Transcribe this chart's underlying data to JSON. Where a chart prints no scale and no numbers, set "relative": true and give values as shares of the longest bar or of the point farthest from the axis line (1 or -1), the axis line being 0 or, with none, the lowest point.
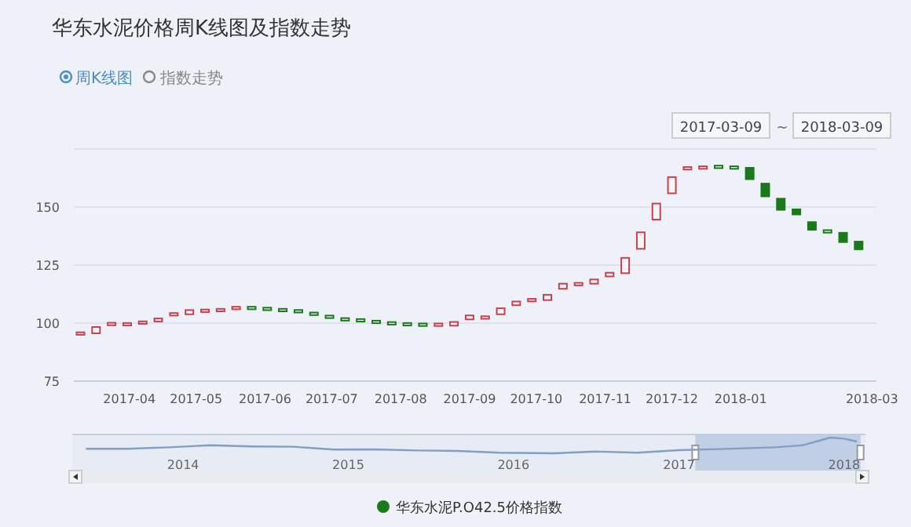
{
  "chart_data": [
    {
      "type": "candlestick",
      "title": "华东水泥价格周K线图及指数走势",
      "annotations": [
        "周K线图",
        "指数走势",
        "2017-03-09",
        "~",
        "2018-03-09"
      ],
      "x": [
        "2017-03-10",
        "2017-03-17",
        "2017-03-24",
        "2017-03-31",
        "2017-04-07",
        "2017-04-14",
        "2017-04-21",
        "2017-04-28",
        "2017-05-05",
        "2017-05-12",
        "2017-05-19",
        "2017-05-26",
        "2017-06-02",
        "2017-06-09",
        "2017-06-16",
        "2017-06-23",
        "2017-06-30",
        "2017-07-07",
        "2017-07-14",
        "2017-07-21",
        "2017-07-28",
        "2017-08-04",
        "2017-08-11",
        "2017-08-18",
        "2017-08-25",
        "2017-09-01",
        "2017-09-08",
        "2017-09-15",
        "2017-09-22",
        "2017-09-29",
        "2017-10-06",
        "2017-10-13",
        "2017-10-20",
        "2017-10-27",
        "2017-11-03",
        "2017-11-10",
        "2017-11-17",
        "2017-11-24",
        "2017-12-01",
        "2017-12-08",
        "2017-12-15",
        "2017-12-22",
        "2017-12-29",
        "2018-01-05",
        "2018-01-12",
        "2018-01-19",
        "2018-01-26",
        "2018-02-02",
        "2018-02-09",
        "2018-02-16",
        "2018-02-23"
      ],
      "series": [
        {
          "name": "华东水泥P.O42.5价格指数",
          "color": "#1a7a1a",
          "ohlc": [
            [
              95.5,
              95.5,
              95.5,
              95.5
            ],
            [
              95.6,
              98.3,
              95.6,
              98.3
            ],
            [
              99.0,
              99.6,
              99.0,
              99.6
            ],
            [
              99.5,
              99.5,
              99.5,
              99.5
            ],
            [
              100.2,
              100.2,
              100.2,
              100.2
            ],
            [
              100.7,
              102,
              100.7,
              102
            ],
            [
              103.8,
              103.8,
              103.8,
              103.8
            ],
            [
              103.8,
              105.6,
              103.8,
              105.6
            ],
            [
              105.3,
              105.3,
              105.3,
              105.3
            ],
            [
              105.6,
              105.6,
              105.6,
              105.6
            ],
            [
              105.6,
              106.5,
              105.6,
              106.5
            ],
            [
              106.5,
              106.5,
              106.5,
              106.5
            ],
            [
              106.1,
              106.1,
              106.1,
              106.1
            ],
            [
              105.6,
              105.6,
              105.6,
              105.6
            ],
            [
              105.1,
              105.1,
              105.1,
              105.1
            ],
            [
              104,
              104,
              104,
              104
            ],
            [
              102.7,
              102.7,
              102.7,
              102.7
            ],
            [
              101.6,
              101.6,
              101.6,
              101.6
            ],
            [
              101.2,
              101.2,
              101.2,
              101.2
            ],
            [
              100.5,
              100.5,
              100.5,
              100.5
            ],
            [
              99.9,
              99.9,
              99.9,
              99.9
            ],
            [
              99.5,
              99.5,
              99.5,
              99.5
            ],
            [
              99.3,
              99.3,
              99.3,
              99.3
            ],
            [
              99.3,
              99.3,
              99.3,
              99.3
            ],
            [
              98.9,
              100.5,
              98.9,
              100.5
            ],
            [
              101.6,
              103.3,
              101.6,
              103.3
            ],
            [
              102.4,
              102.4,
              102.4,
              102.4
            ],
            [
              103.8,
              106.4,
              103.8,
              106.4
            ],
            [
              107.7,
              109.3,
              107.7,
              109.3
            ],
            [
              109.9,
              109.9,
              109.9,
              109.9
            ],
            [
              109.9,
              112.2,
              109.9,
              112.2
            ],
            [
              114.8,
              117,
              114.8,
              117
            ],
            [
              116.8,
              116.8,
              116.8,
              116.8
            ],
            [
              117,
              118.8,
              117,
              118.8
            ],
            [
              120.1,
              121.7,
              120.1,
              121.7
            ],
            [
              121.5,
              128.1,
              121.5,
              128.1
            ],
            [
              132,
              139.1,
              132,
              139.1
            ],
            [
              144.6,
              151.5,
              144.6,
              151.5
            ],
            [
              155.9,
              162.9,
              155.9,
              162.9
            ],
            [
              166.7,
              166.7,
              166.7,
              166.7
            ],
            [
              167,
              167,
              167,
              167
            ],
            [
              167.3,
              167.3,
              167.3,
              167.3
            ],
            [
              167,
              167,
              167,
              167
            ],
            [
              166.9,
              166.9,
              162,
              162
            ],
            [
              160.1,
              160.1,
              154.6,
              154.6
            ],
            [
              153.6,
              153.6,
              148.8,
              148.8
            ],
            [
              149,
              149,
              146.8,
              146.8
            ],
            [
              143.5,
              143.5,
              140.2,
              140.2
            ],
            [
              139.5,
              139.5,
              139.5,
              139.5
            ],
            [
              138.9,
              138.9,
              134.9,
              134.9
            ],
            [
              135.1,
              135.1,
              131.8,
              131.8
            ]
          ],
          "colors": [
            "#c9414b",
            "#c9414b",
            "#c9414b",
            "#c9414b",
            "#c9414b",
            "#c9414b",
            "#c9414b",
            "#c9414b",
            "#c9414b",
            "#c9414b",
            "#c9414b",
            "#1a7a1a",
            "#1a7a1a",
            "#1a7a1a",
            "#1a7a1a",
            "#1a7a1a",
            "#1a7a1a",
            "#1a7a1a",
            "#1a7a1a",
            "#1a7a1a",
            "#1a7a1a",
            "#1a7a1a",
            "#1a7a1a",
            "#c9414b",
            "#c9414b",
            "#c9414b",
            "#c9414b",
            "#c9414b",
            "#c9414b",
            "#c9414b",
            "#c9414b",
            "#c9414b",
            "#c9414b",
            "#c9414b",
            "#c9414b",
            "#c9414b",
            "#c9414b",
            "#c9414b",
            "#c9414b",
            "#c9414b",
            "#c9414b",
            "#1a7a1a",
            "#1a7a1a",
            "#1a7a1a",
            "#1a7a1a",
            "#1a7a1a",
            "#1a7a1a",
            "#1a7a1a",
            "#1a7a1a",
            "#1a7a1a",
            "#1a7a1a"
          ]
        }
      ],
      "xlim": [
        "2017-03-07",
        "2018-03-03"
      ],
      "xticks": [
        "2017-04",
        "2017-05",
        "2017-06",
        "2017-07",
        "2017-08",
        "2017-09",
        "2017-10",
        "2017-11",
        "2017-12",
        "2018-01",
        "2018-03"
      ],
      "ylim": [
        75,
        175
      ],
      "yticks": [
        75,
        100,
        125,
        150,
        {
          "value": 175,
          "label": null
        }
      ],
      "grid": "y",
      "legend": "bottom"
    },
    {
      "type": "line",
      "relative": true,
      "x": [
        "2013-07",
        "2013-10",
        "2014-01",
        "2014-04",
        "2014-07",
        "2014-10",
        "2015-01",
        "2015-04",
        "2015-07",
        "2015-10",
        "2016-01",
        "2016-05",
        "2016-08",
        "2016-11",
        "2017-02",
        "2017-05",
        "2017-09",
        "2017-11",
        "2017-12",
        "2018-01",
        "2018-02",
        "2018-03"
      ],
      "series": [
        {
          "color": "#7f9fc4",
          "values": [
            0.29,
            0.29,
            0.38,
            0.51,
            0.44,
            0.42,
            0.24,
            0.25,
            0.18,
            0.15,
            0.04,
            0.0,
            0.11,
            0.04,
            0.2,
            0.27,
            0.38,
            0.51,
            0.75,
            1,
            0.93,
            0.75
          ]
        }
      ],
      "bands": [
        {
          "axis": "x",
          "from": "2017-03-09",
          "to": "2018-03-09",
          "color": "#b8c8e2"
        }
      ],
      "xlim": [
        "2013-06",
        "2018-03-20"
      ],
      "xticks": [
        {
          "value": "2014-02",
          "label": "2014"
        },
        {
          "value": "2015-02",
          "label": "2015"
        },
        {
          "value": "2016-02",
          "label": "2016"
        },
        {
          "value": "2017-02",
          "label": "2017"
        },
        {
          "value": "2018-02",
          "label": "2018"
        }
      ]
    }
  ]
}
